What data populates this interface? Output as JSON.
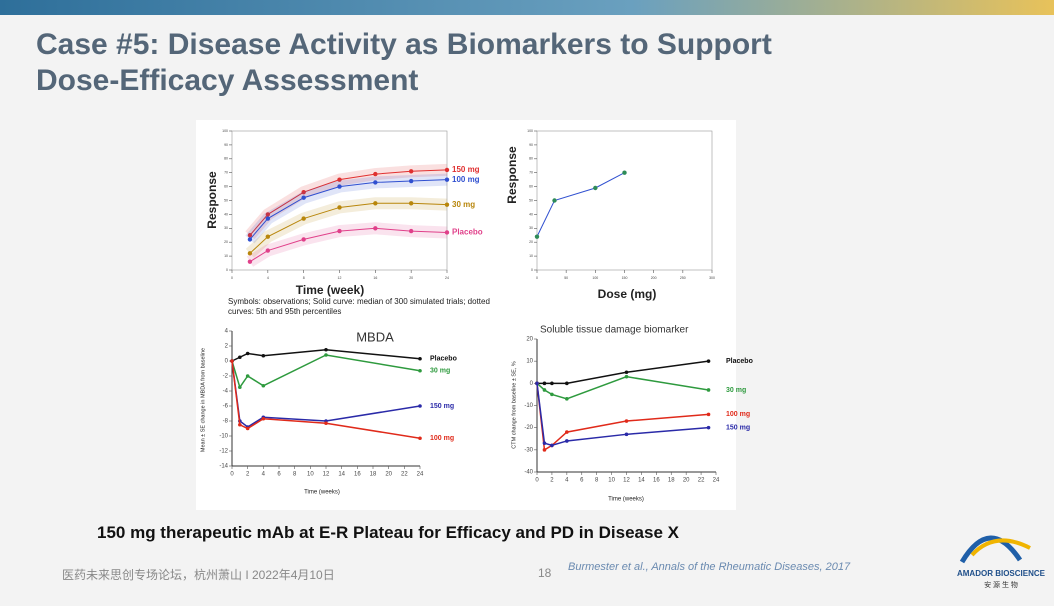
{
  "slide": {
    "title_lines": [
      "Case #5: Disease Activity as Biomarkers to Support",
      "Dose-Efficacy Assessment"
    ],
    "note": "Symbols: observations; Solid curve: median of 300 simulated trials; dotted curves: 5th and 95th percentiles",
    "statement": "150 mg therapeutic mAb at E-R Plateau for Efficacy and PD in Disease X",
    "footer": "医药未来思创专场论坛，杭州萧山 I 2022年4月10日",
    "page": "18",
    "citation": "Burmester  et al., Annals of the Rheumatic Diseases, 2017",
    "logo": "AMADOR BIOSCIENCE",
    "logo_cn": "安 源 生 物"
  },
  "chart_data": [
    {
      "type": "line",
      "xlabel": "Time (week)",
      "ylabel": "Response",
      "x": [
        2,
        4,
        8,
        12,
        16,
        20,
        24
      ],
      "xlim": [
        0,
        24
      ],
      "ylim": [
        0,
        100
      ],
      "xticks": [
        0,
        4,
        8,
        12,
        16,
        20,
        24
      ],
      "yticks": [
        0,
        10,
        20,
        30,
        40,
        50,
        60,
        70,
        80,
        90,
        100
      ],
      "series": [
        {
          "name": "150 mg",
          "color": "#e03030",
          "values": [
            25,
            40,
            56,
            65,
            69,
            71,
            72
          ]
        },
        {
          "name": "100 mg",
          "color": "#3050d0",
          "values": [
            22,
            37,
            52,
            60,
            63,
            64,
            65
          ]
        },
        {
          "name": "30 mg",
          "color": "#b8860b",
          "values": [
            12,
            24,
            37,
            45,
            48,
            48,
            47
          ]
        },
        {
          "name": "Placebo",
          "color": "#e0408a",
          "values": [
            6,
            14,
            22,
            28,
            30,
            28,
            27
          ]
        }
      ]
    },
    {
      "type": "line",
      "xlabel": "Dose (mg)",
      "ylabel": "Response",
      "x": [
        0,
        30,
        100,
        150
      ],
      "xlim": [
        0,
        300
      ],
      "ylim": [
        0,
        100
      ],
      "xticks": [
        0,
        50,
        100,
        150,
        200,
        250,
        300
      ],
      "yticks": [
        0,
        10,
        20,
        30,
        40,
        50,
        60,
        70,
        80,
        90,
        100
      ],
      "color": "#3050d0",
      "values": [
        24,
        50,
        59,
        70
      ]
    },
    {
      "type": "line",
      "title": "MBDA",
      "xlabel": "Time (weeks)",
      "ylabel": "Mean ± SE change in MBDA from baseline",
      "x": [
        0,
        1,
        2,
        4,
        12,
        24
      ],
      "xlim": [
        0,
        24
      ],
      "ylim": [
        -14,
        4
      ],
      "xticks": [
        0,
        2,
        4,
        6,
        8,
        10,
        12,
        14,
        16,
        18,
        20,
        22,
        24
      ],
      "yticks": [
        4,
        2,
        0,
        -2,
        -4,
        -6,
        -8,
        -10,
        -12,
        -14
      ],
      "series": [
        {
          "name": "Placebo",
          "color": "#111111",
          "values": [
            0,
            0.5,
            1,
            0.7,
            1.5,
            0.3
          ]
        },
        {
          "name": "30 mg",
          "color": "#2e9a3e",
          "values": [
            0,
            -3.5,
            -2,
            -3.3,
            0.8,
            -1.3
          ]
        },
        {
          "name": "150 mg",
          "color": "#2a2aa8",
          "values": [
            0,
            -8,
            -8.8,
            -7.5,
            -8,
            -6
          ]
        },
        {
          "name": "100 mg",
          "color": "#e02a1a",
          "values": [
            0,
            -8.5,
            -9,
            -7.7,
            -8.3,
            -10.3
          ]
        }
      ]
    },
    {
      "type": "line",
      "title": "Soluble tissue damage biomarker",
      "xlabel": "Time (weeks)",
      "ylabel": "CTM change from baseline ± SE, %",
      "x": [
        0,
        1,
        2,
        4,
        12,
        23
      ],
      "xlim": [
        0,
        24
      ],
      "ylim": [
        -40,
        20
      ],
      "xticks": [
        0,
        2,
        4,
        6,
        8,
        10,
        12,
        14,
        16,
        18,
        20,
        22,
        24
      ],
      "yticks": [
        20,
        10,
        0,
        -10,
        -20,
        -30,
        -40
      ],
      "series": [
        {
          "name": "Placebo",
          "color": "#111111",
          "values": [
            0,
            0,
            0,
            0,
            5,
            10
          ]
        },
        {
          "name": "30 mg",
          "color": "#2e9a3e",
          "values": [
            0,
            -3,
            -5,
            -7,
            3,
            -3
          ]
        },
        {
          "name": "100 mg",
          "color": "#e02a1a",
          "values": [
            0,
            -30,
            -28,
            -22,
            -17,
            -14
          ]
        },
        {
          "name": "150 mg",
          "color": "#2a2aa8",
          "values": [
            0,
            -27,
            -28,
            -26,
            -23,
            -20
          ]
        }
      ]
    }
  ]
}
